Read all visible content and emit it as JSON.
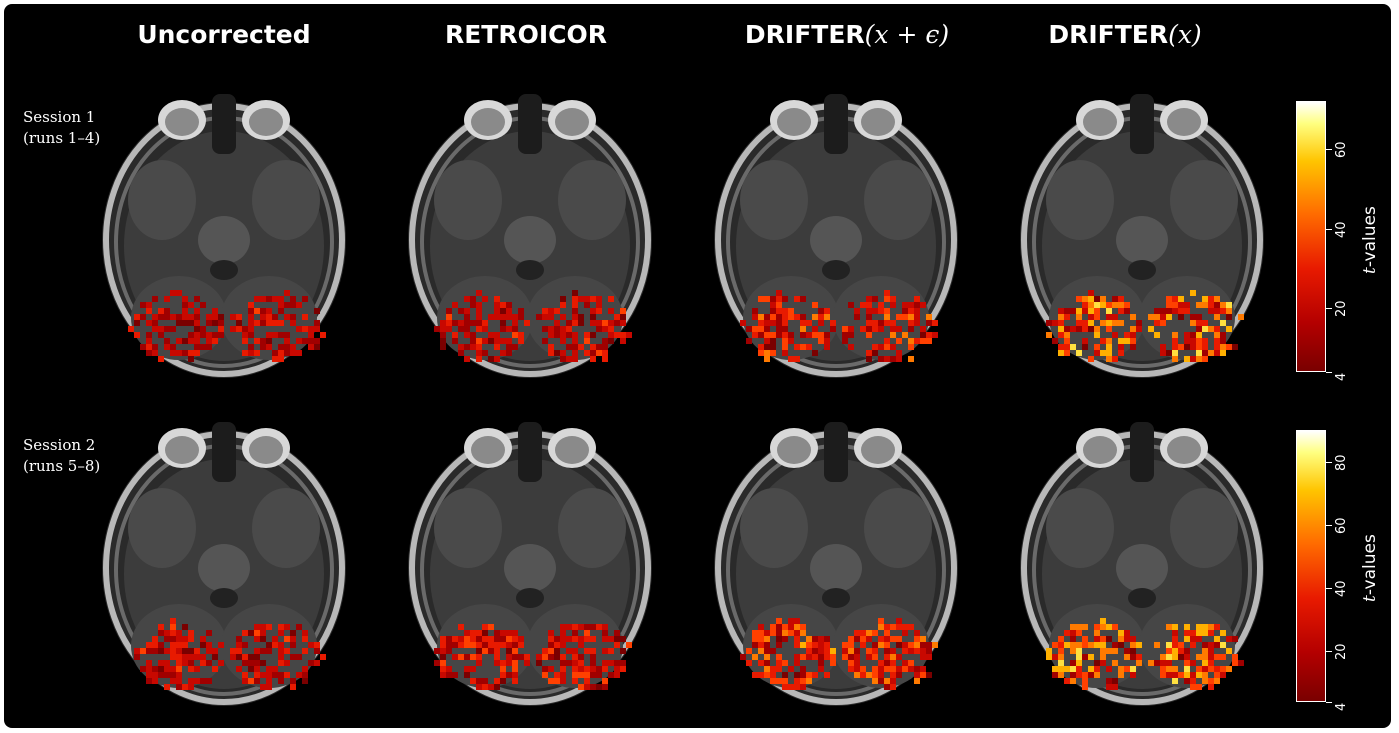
{
  "columns": [
    {
      "title": "Uncorrected",
      "math": ""
    },
    {
      "title": "RETROICOR",
      "math": ""
    },
    {
      "title": "DRIFTER",
      "math": "(x + ϵ)"
    },
    {
      "title": "DRIFTER",
      "math": "(x)"
    }
  ],
  "rows": [
    {
      "label_line1": "Session 1",
      "label_line2": "(runs 1–4)",
      "colorbar": {
        "label_prefix": "t",
        "label_suffix": "-values",
        "ticks": [
          "4",
          "20",
          "40",
          "60"
        ],
        "min": 4,
        "max": 72
      }
    },
    {
      "label_line1": "Session 2",
      "label_line2": "(runs 5–8)",
      "colorbar": {
        "label_prefix": "t",
        "label_suffix": "-values",
        "ticks": [
          "4",
          "20",
          "40",
          "60",
          "80"
        ],
        "min": 4,
        "max": 90
      }
    }
  ],
  "colors": {
    "background": "#000000",
    "colormap": [
      "#7a0000",
      "#e81a00",
      "#ff6a00",
      "#ffc400",
      "#ffffff"
    ]
  }
}
